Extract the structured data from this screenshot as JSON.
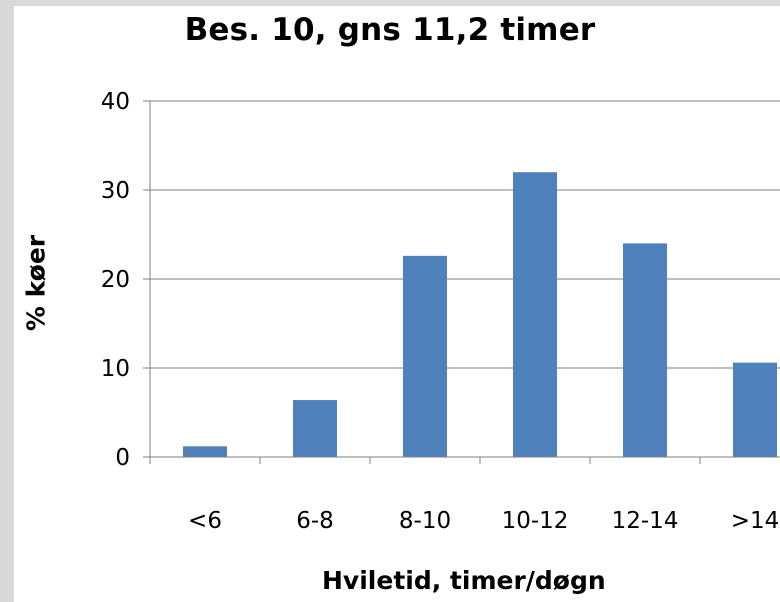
{
  "chart_data": {
    "type": "bar",
    "title": "Bes. 10, gns 11,2 timer",
    "xlabel": "Hviletid, timer/døgn",
    "ylabel": "% køer",
    "categories": [
      "<6",
      "6-8",
      "8-10",
      "10-12",
      "12-14",
      ">14"
    ],
    "values": [
      1.2,
      6.4,
      22.6,
      32.0,
      24.0,
      10.6
    ],
    "ylim": [
      0,
      40
    ],
    "yticks": [
      0,
      10,
      20,
      30,
      40
    ],
    "grid": true,
    "legend": "none",
    "bar_color": "#4f81bd",
    "grid_color": "#7f7f7f"
  }
}
